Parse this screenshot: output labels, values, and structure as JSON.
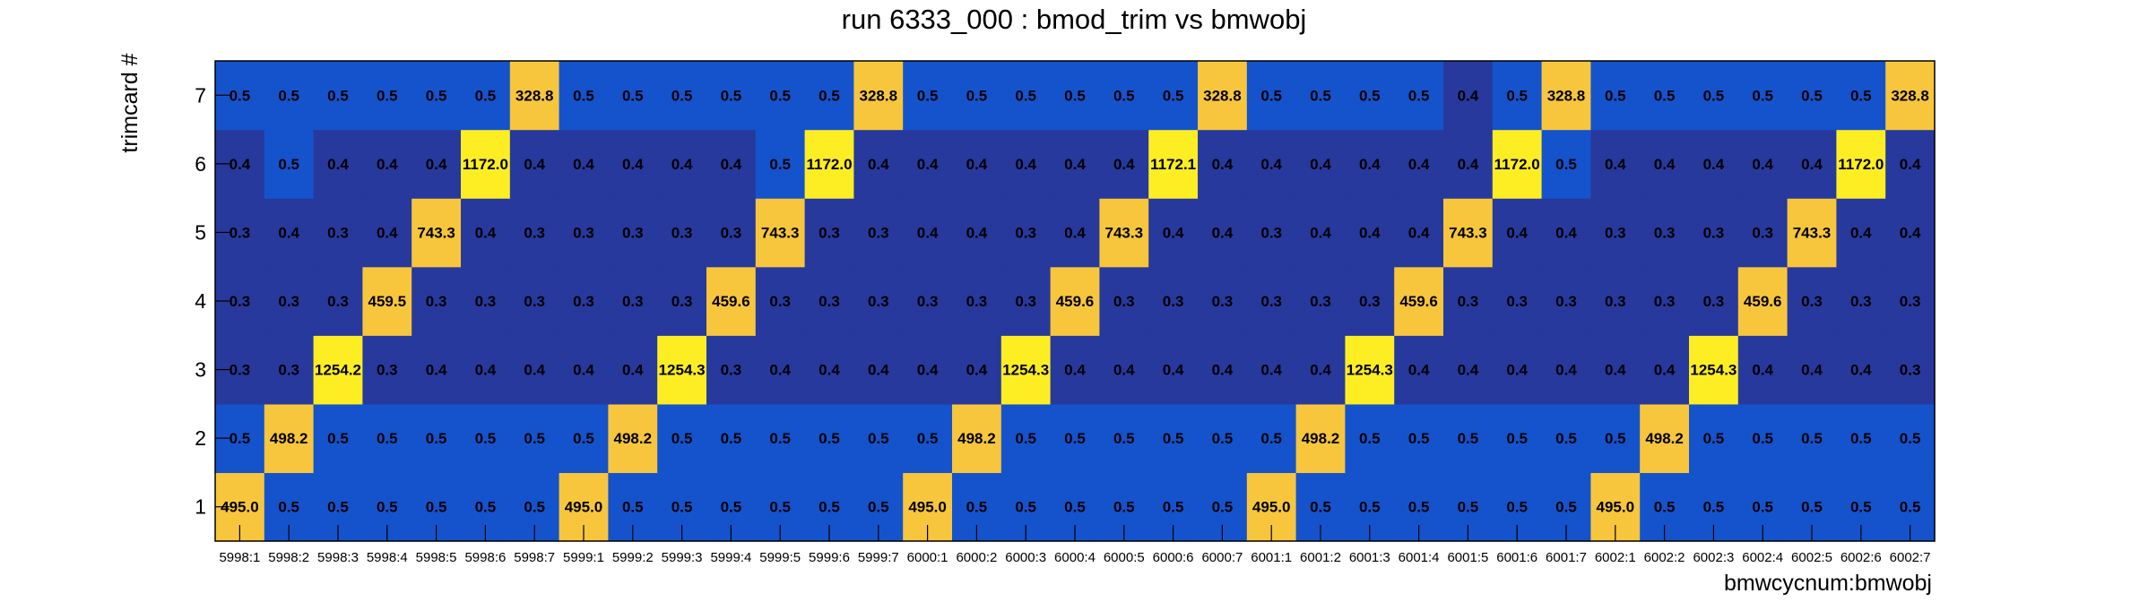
{
  "chart_data": {
    "type": "heatmap",
    "title": "run 6333_000 : bmod_trim vs bmwobj",
    "xlabel": "bmwcycnum:bmwobj",
    "ylabel": "trimcard #",
    "x_categories": [
      "5998:1",
      "5998:2",
      "5998:3",
      "5998:4",
      "5998:5",
      "5998:6",
      "5998:7",
      "5999:1",
      "5999:2",
      "5999:3",
      "5999:4",
      "5999:5",
      "5999:6",
      "5999:7",
      "6000:1",
      "6000:2",
      "6000:3",
      "6000:4",
      "6000:5",
      "6000:6",
      "6000:7",
      "6001:1",
      "6001:2",
      "6001:3",
      "6001:4",
      "6001:5",
      "6001:6",
      "6001:7",
      "6002:1",
      "6002:2",
      "6002:3",
      "6002:4",
      "6002:5",
      "6002:6",
      "6002:7"
    ],
    "y_categories": [
      "1",
      "2",
      "3",
      "4",
      "5",
      "6",
      "7"
    ],
    "values": [
      [
        "495.0",
        "0.5",
        "0.5",
        "0.5",
        "0.5",
        "0.5",
        "0.5",
        "495.0",
        "0.5",
        "0.5",
        "0.5",
        "0.5",
        "0.5",
        "0.5",
        "495.0",
        "0.5",
        "0.5",
        "0.5",
        "0.5",
        "0.5",
        "0.5",
        "495.0",
        "0.5",
        "0.5",
        "0.5",
        "0.5",
        "0.5",
        "0.5",
        "495.0",
        "0.5",
        "0.5",
        "0.5",
        "0.5",
        "0.5",
        "0.5"
      ],
      [
        "0.5",
        "498.2",
        "0.5",
        "0.5",
        "0.5",
        "0.5",
        "0.5",
        "0.5",
        "498.2",
        "0.5",
        "0.5",
        "0.5",
        "0.5",
        "0.5",
        "0.5",
        "498.2",
        "0.5",
        "0.5",
        "0.5",
        "0.5",
        "0.5",
        "0.5",
        "498.2",
        "0.5",
        "0.5",
        "0.5",
        "0.5",
        "0.5",
        "0.5",
        "498.2",
        "0.5",
        "0.5",
        "0.5",
        "0.5",
        "0.5"
      ],
      [
        "0.3",
        "0.3",
        "1254.2",
        "0.3",
        "0.4",
        "0.4",
        "0.4",
        "0.4",
        "0.4",
        "1254.3",
        "0.3",
        "0.4",
        "0.4",
        "0.4",
        "0.4",
        "0.4",
        "1254.3",
        "0.4",
        "0.4",
        "0.4",
        "0.4",
        "0.4",
        "0.4",
        "1254.3",
        "0.4",
        "0.4",
        "0.4",
        "0.4",
        "0.4",
        "0.4",
        "1254.3",
        "0.4",
        "0.4",
        "0.4",
        "0.3"
      ],
      [
        "0.3",
        "0.3",
        "0.3",
        "459.5",
        "0.3",
        "0.3",
        "0.3",
        "0.3",
        "0.3",
        "0.3",
        "459.6",
        "0.3",
        "0.3",
        "0.3",
        "0.3",
        "0.3",
        "0.3",
        "459.6",
        "0.3",
        "0.3",
        "0.3",
        "0.3",
        "0.3",
        "0.3",
        "459.6",
        "0.3",
        "0.3",
        "0.3",
        "0.3",
        "0.3",
        "0.3",
        "459.6",
        "0.3",
        "0.3",
        "0.3"
      ],
      [
        "0.3",
        "0.4",
        "0.3",
        "0.4",
        "743.3",
        "0.4",
        "0.3",
        "0.3",
        "0.3",
        "0.3",
        "0.3",
        "743.3",
        "0.3",
        "0.3",
        "0.4",
        "0.4",
        "0.3",
        "0.4",
        "743.3",
        "0.4",
        "0.4",
        "0.3",
        "0.4",
        "0.4",
        "0.4",
        "743.3",
        "0.4",
        "0.4",
        "0.3",
        "0.3",
        "0.3",
        "0.3",
        "743.3",
        "0.4",
        "0.4"
      ],
      [
        "0.4",
        "0.5",
        "0.4",
        "0.4",
        "0.4",
        "1172.0",
        "0.4",
        "0.4",
        "0.4",
        "0.4",
        "0.4",
        "0.5",
        "1172.0",
        "0.4",
        "0.4",
        "0.4",
        "0.4",
        "0.4",
        "0.4",
        "1172.1",
        "0.4",
        "0.4",
        "0.4",
        "0.4",
        "0.4",
        "0.4",
        "1172.0",
        "0.5",
        "0.4",
        "0.4",
        "0.4",
        "0.4",
        "0.4",
        "1172.0",
        "0.4"
      ],
      [
        "0.5",
        "0.5",
        "0.5",
        "0.5",
        "0.5",
        "0.5",
        "328.8",
        "0.5",
        "0.5",
        "0.5",
        "0.5",
        "0.5",
        "0.5",
        "328.8",
        "0.5",
        "0.5",
        "0.5",
        "0.5",
        "0.5",
        "0.5",
        "328.8",
        "0.5",
        "0.5",
        "0.5",
        "0.5",
        "0.4",
        "0.5",
        "328.8",
        "0.5",
        "0.5",
        "0.5",
        "0.5",
        "0.5",
        "0.5",
        "328.8"
      ]
    ],
    "colors": {
      "very_low": "#27399c",
      "low": "#1553cc",
      "high": "#f7c63c",
      "max": "#fdee23",
      "frame": "#000000"
    }
  }
}
